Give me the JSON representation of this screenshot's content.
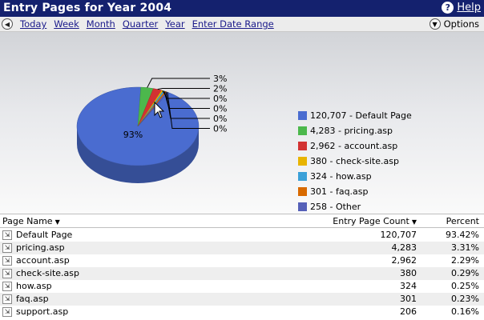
{
  "header": {
    "title": "Entry Pages for Year 2004",
    "help_label": "Help"
  },
  "nav": {
    "links": [
      "Today",
      "Week",
      "Month",
      "Quarter",
      "Year",
      "Enter Date Range"
    ],
    "options_label": "Options"
  },
  "chart_data": {
    "type": "pie",
    "slices": [
      {
        "label": "120,707 - Default Page",
        "value": 120707,
        "percent_label": "93%",
        "color": "#4a6cd0"
      },
      {
        "label": "4,283 - pricing.asp",
        "value": 4283,
        "percent_label": "3%",
        "color": "#4cb84c"
      },
      {
        "label": "2,962 - account.asp",
        "value": 2962,
        "percent_label": "2%",
        "color": "#d23232"
      },
      {
        "label": "380 - check-site.asp",
        "value": 380,
        "percent_label": "0%",
        "color": "#e8b400"
      },
      {
        "label": "324 - how.asp",
        "value": 324,
        "percent_label": "0%",
        "color": "#3aa0d8"
      },
      {
        "label": "301 - faq.asp",
        "value": 301,
        "percent_label": "0%",
        "color": "#d86a00"
      },
      {
        "label": "258 - Other",
        "value": 258,
        "percent_label": "0%",
        "color": "#5560b8"
      }
    ],
    "legend_position": "right"
  },
  "table": {
    "columns": {
      "name": "Page Name",
      "count": "Entry Page Count",
      "percent": "Percent"
    },
    "rows": [
      {
        "name": "Default Page",
        "count": "120,707",
        "percent": "93.42%"
      },
      {
        "name": "pricing.asp",
        "count": "4,283",
        "percent": "3.31%"
      },
      {
        "name": "account.asp",
        "count": "2,962",
        "percent": "2.29%"
      },
      {
        "name": "check-site.asp",
        "count": "380",
        "percent": "0.29%"
      },
      {
        "name": "how.asp",
        "count": "324",
        "percent": "0.25%"
      },
      {
        "name": "faq.asp",
        "count": "301",
        "percent": "0.23%"
      },
      {
        "name": "support.asp",
        "count": "206",
        "percent": "0.16%"
      }
    ]
  }
}
